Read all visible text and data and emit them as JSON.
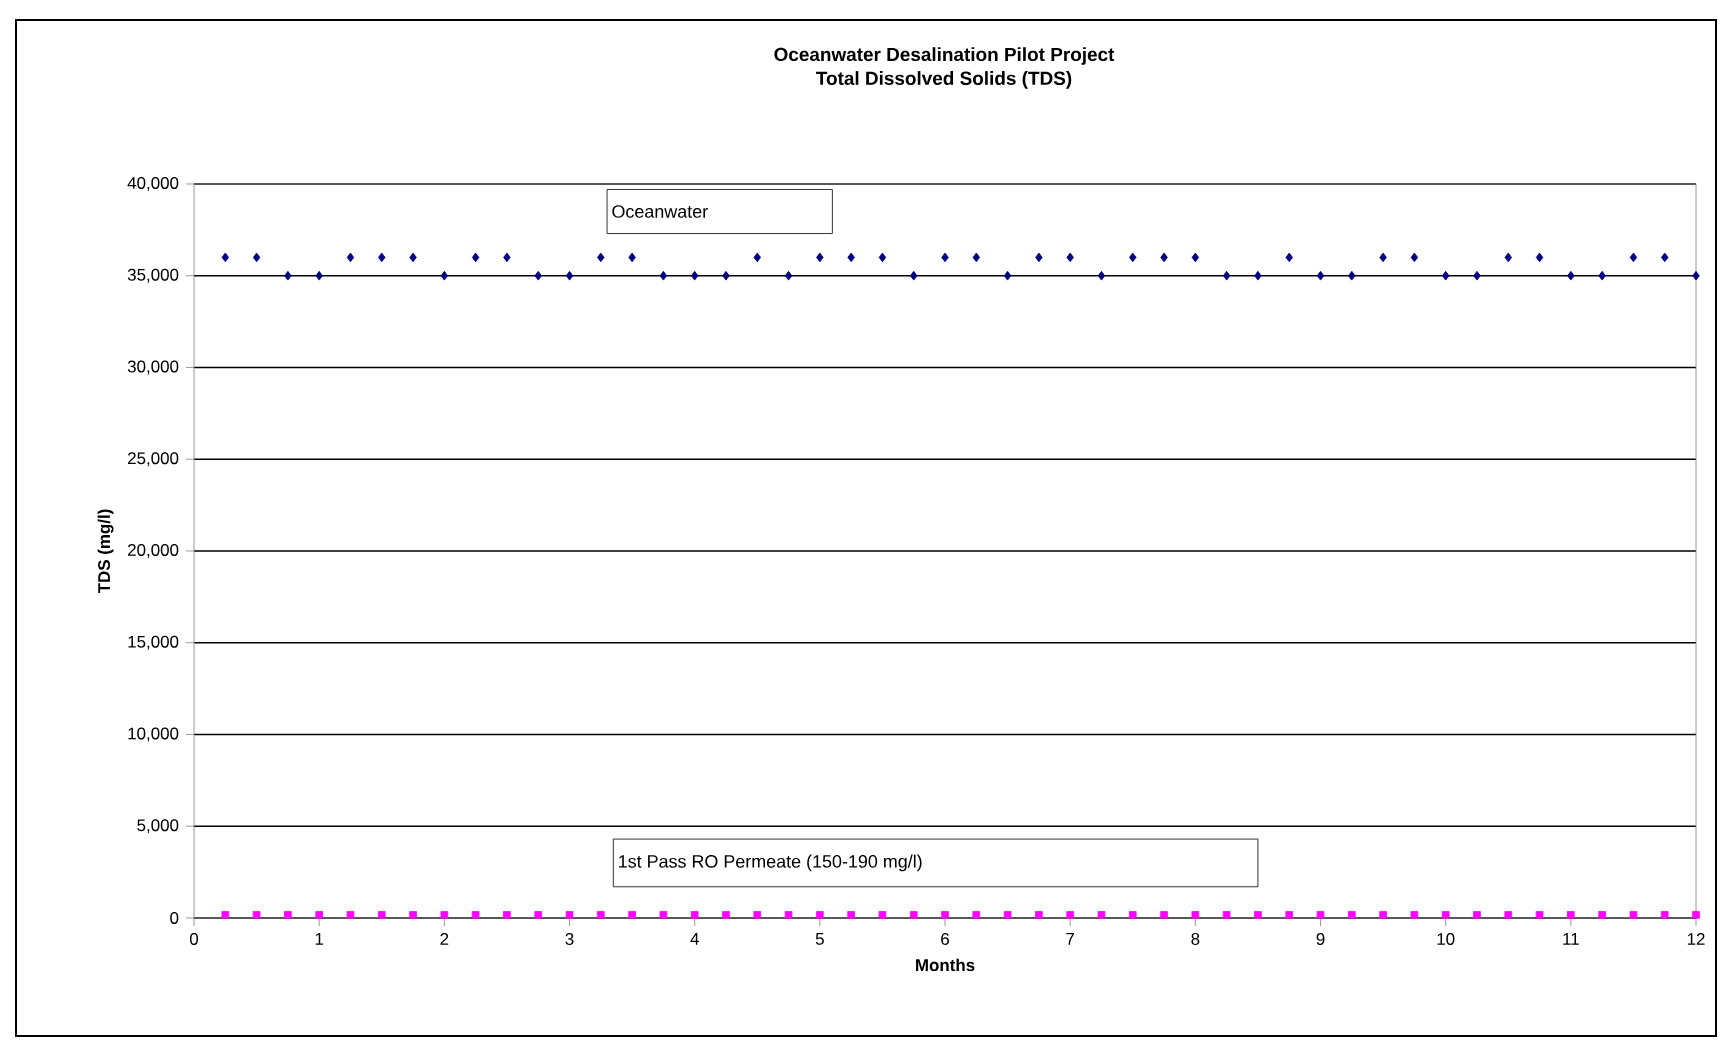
{
  "chart_data": {
    "type": "scatter",
    "title": "Oceanwater Desalination Pilot Project\nTotal Dissolved Solids (TDS)",
    "xlabel": "Months",
    "ylabel": "TDS (mg/l)",
    "x": [
      0.25,
      0.5,
      0.75,
      1,
      1.25,
      1.5,
      1.75,
      2,
      2.25,
      2.5,
      2.75,
      3,
      3.25,
      3.5,
      3.75,
      4,
      4.25,
      4.5,
      4.75,
      5,
      5.25,
      5.5,
      5.75,
      6,
      6.25,
      6.5,
      6.75,
      7,
      7.25,
      7.5,
      7.75,
      8,
      8.25,
      8.5,
      8.75,
      9,
      9.25,
      9.5,
      9.75,
      10,
      10.25,
      10.5,
      10.75,
      11,
      11.25,
      11.5,
      11.75,
      12
    ],
    "series": [
      {
        "name": "Oceanwater",
        "color": "#000080",
        "marker": "diamond",
        "values": [
          36000,
          36000,
          35000,
          35000,
          36000,
          36000,
          36000,
          35000,
          36000,
          36000,
          35000,
          35000,
          36000,
          36000,
          35000,
          35000,
          35000,
          36000,
          35000,
          36000,
          36000,
          36000,
          35000,
          36000,
          36000,
          35000,
          36000,
          36000,
          35000,
          36000,
          36000,
          36000,
          35000,
          35000,
          36000,
          35000,
          35000,
          36000,
          36000,
          35000,
          35000,
          36000,
          36000,
          35000,
          35000,
          36000,
          36000,
          35000
        ]
      },
      {
        "name": "1st Pass RO Permeate (150-190 mg/l)",
        "color": "#ff00ff",
        "marker": "square",
        "values": [
          170,
          170,
          170,
          170,
          170,
          170,
          170,
          170,
          170,
          170,
          170,
          170,
          170,
          170,
          170,
          170,
          170,
          170,
          170,
          170,
          170,
          170,
          170,
          170,
          170,
          170,
          170,
          170,
          170,
          170,
          170,
          170,
          170,
          170,
          170,
          170,
          170,
          170,
          170,
          170,
          170,
          170,
          170,
          170,
          170,
          170,
          170,
          170
        ]
      }
    ],
    "xlim": [
      0,
      12
    ],
    "xticks": [
      0,
      1,
      2,
      3,
      4,
      5,
      6,
      7,
      8,
      9,
      10,
      11,
      12
    ],
    "ylim": [
      0,
      40000
    ],
    "yticks": [
      {
        "value": 0,
        "label": "0"
      },
      {
        "value": 5000,
        "label": "5,000"
      },
      {
        "value": 10000,
        "label": "10,000"
      },
      {
        "value": 15000,
        "label": "15,000"
      },
      {
        "value": 20000,
        "label": "20,000"
      },
      {
        "value": 25000,
        "label": "25,000"
      },
      {
        "value": 30000,
        "label": "30,000"
      },
      {
        "value": 35000,
        "label": "35,000"
      },
      {
        "value": 40000,
        "label": "40,000"
      }
    ],
    "grid": "y"
  }
}
